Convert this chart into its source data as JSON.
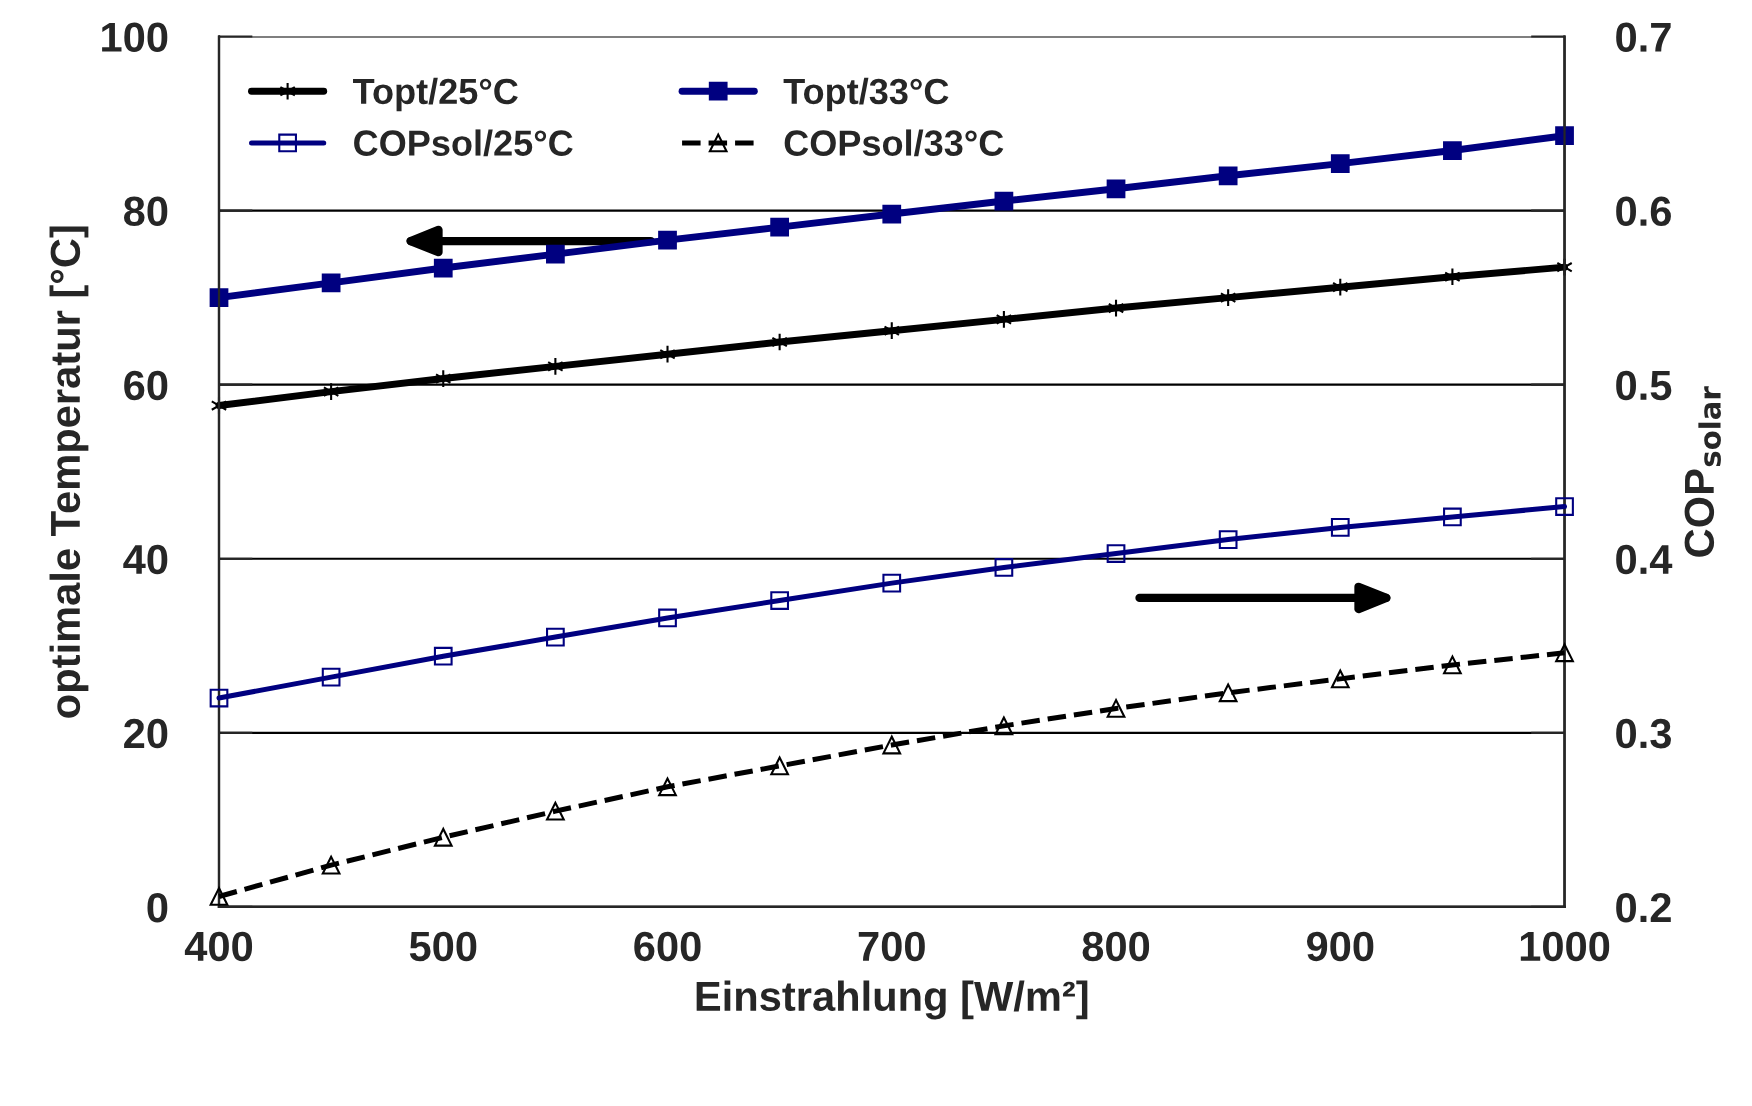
{
  "chart_data": {
    "type": "line",
    "xlabel": "Einstrahlung [W/m²]",
    "ylabel": "optimale Temperatur [°C]",
    "y2label": "COP$_{solar}$",
    "x": [
      400,
      450,
      500,
      550,
      600,
      650,
      700,
      750,
      800,
      850,
      900,
      950,
      1000
    ],
    "xlim": [
      400,
      1000
    ],
    "xticks": [
      400,
      500,
      600,
      700,
      800,
      900,
      1000
    ],
    "ylim": [
      0,
      100
    ],
    "yticks": [
      0,
      20,
      40,
      60,
      80,
      100
    ],
    "y2lim": [
      0.2,
      0.7
    ],
    "y2ticks": [
      0.2,
      0.3,
      0.4,
      0.5,
      0.6,
      0.7
    ],
    "grid": "y",
    "legend": "top left",
    "series": [
      {
        "name": "Topt/25°C",
        "color": "#000000",
        "marker": "cross",
        "line_style": "solid",
        "values": [
          57.6,
          59.2,
          60.7,
          62.1,
          63.5,
          64.9,
          66.2,
          67.5,
          68.8,
          70.0,
          71.2,
          72.4,
          73.5
        ]
      },
      {
        "name": "Topt/33°C",
        "color": "#000080",
        "marker": "square",
        "line_style": "solid",
        "values": [
          70.0,
          71.7,
          73.4,
          75.0,
          76.6,
          78.1,
          79.6,
          81.1,
          82.5,
          84.0,
          85.4,
          86.9,
          88.6
        ]
      },
      {
        "name": "COPsol/25°C",
        "color": "#000080",
        "marker": "square",
        "line_style": "solid",
        "axis": "y2",
        "values": [
          0.32,
          0.332,
          0.344,
          0.355,
          0.366,
          0.376,
          0.386,
          0.395,
          0.403,
          0.411,
          0.418,
          0.424,
          0.43
        ]
      },
      {
        "name": "COPsol/33°C",
        "color": "#000000",
        "marker": "triangle",
        "line_style": "dashed",
        "axis": "y2",
        "values": [
          0.206,
          0.224,
          0.24,
          0.255,
          0.269,
          0.281,
          0.293,
          0.304,
          0.314,
          0.323,
          0.331,
          0.339,
          0.346
        ]
      }
    ]
  }
}
